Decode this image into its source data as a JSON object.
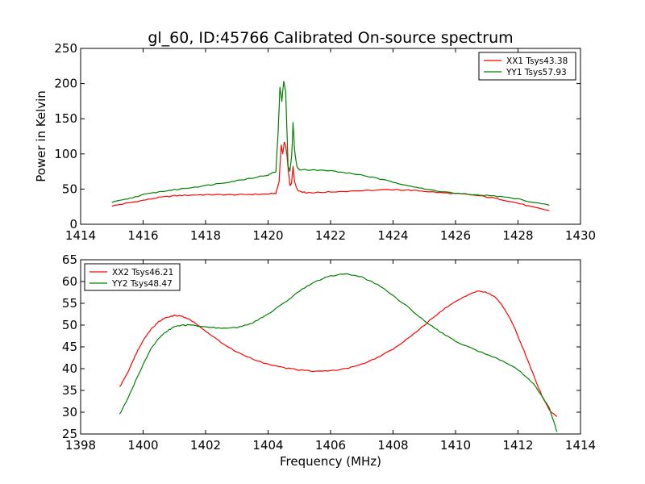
{
  "figure_title": "gl_60, ID:45766 Calibrated On-source spectrum",
  "chart_data": [
    {
      "type": "line",
      "xlim": [
        1414,
        1430
      ],
      "ylim": [
        0,
        250
      ],
      "xticks": [
        1414,
        1416,
        1418,
        1420,
        1422,
        1424,
        1426,
        1428,
        1430
      ],
      "yticks": [
        0,
        50,
        100,
        150,
        200,
        250
      ],
      "xlabel": "",
      "ylabel": "Power in Kelvin",
      "legend_position": "top-right",
      "series": [
        {
          "name": "XX1 Tsys43.38",
          "color": "#ff0000",
          "points": [
            [
              1415.0,
              26
            ],
            [
              1415.5,
              30
            ],
            [
              1416.0,
              34
            ],
            [
              1416.5,
              38
            ],
            [
              1417.0,
              40.5
            ],
            [
              1417.5,
              41.5
            ],
            [
              1418.0,
              42
            ],
            [
              1418.5,
              42
            ],
            [
              1419.0,
              42
            ],
            [
              1419.5,
              42.5
            ],
            [
              1420.0,
              43
            ],
            [
              1420.25,
              44
            ],
            [
              1420.35,
              60
            ],
            [
              1420.42,
              112
            ],
            [
              1420.47,
              100
            ],
            [
              1420.52,
              117
            ],
            [
              1420.56,
              112
            ],
            [
              1420.6,
              100
            ],
            [
              1420.65,
              75
            ],
            [
              1420.7,
              55
            ],
            [
              1420.75,
              58
            ],
            [
              1420.8,
              82
            ],
            [
              1420.85,
              60
            ],
            [
              1420.95,
              48
            ],
            [
              1421.2,
              45
            ],
            [
              1421.5,
              45
            ],
            [
              1422.0,
              46
            ],
            [
              1423.0,
              48
            ],
            [
              1424.0,
              49
            ],
            [
              1424.5,
              48.5
            ],
            [
              1425.0,
              47
            ],
            [
              1425.5,
              45
            ],
            [
              1426.0,
              43.5
            ],
            [
              1426.5,
              42
            ],
            [
              1427.0,
              39
            ],
            [
              1427.5,
              35
            ],
            [
              1428.0,
              30
            ],
            [
              1428.5,
              24
            ],
            [
              1429.0,
              19.5
            ]
          ]
        },
        {
          "name": "YY1 Tsys57.93",
          "color": "#008000",
          "points": [
            [
              1415.0,
              31
            ],
            [
              1415.5,
              36
            ],
            [
              1416.0,
              42
            ],
            [
              1416.5,
              46
            ],
            [
              1417.0,
              49
            ],
            [
              1417.5,
              52
            ],
            [
              1418.0,
              55
            ],
            [
              1418.5,
              58.5
            ],
            [
              1419.0,
              62
            ],
            [
              1419.5,
              66
            ],
            [
              1420.0,
              70
            ],
            [
              1420.25,
              75
            ],
            [
              1420.32,
              130
            ],
            [
              1420.38,
              195
            ],
            [
              1420.44,
              175
            ],
            [
              1420.5,
              203
            ],
            [
              1420.56,
              190
            ],
            [
              1420.6,
              140
            ],
            [
              1420.64,
              82
            ],
            [
              1420.7,
              76
            ],
            [
              1420.76,
              100
            ],
            [
              1420.8,
              145
            ],
            [
              1420.85,
              105
            ],
            [
              1420.92,
              82
            ],
            [
              1421.0,
              78
            ],
            [
              1421.5,
              77
            ],
            [
              1422.0,
              76
            ],
            [
              1422.5,
              73
            ],
            [
              1423.0,
              70
            ],
            [
              1423.5,
              65
            ],
            [
              1424.0,
              60
            ],
            [
              1424.5,
              55
            ],
            [
              1425.0,
              50
            ],
            [
              1425.5,
              47
            ],
            [
              1426.0,
              44
            ],
            [
              1426.5,
              42
            ],
            [
              1427.0,
              41
            ],
            [
              1427.5,
              39
            ],
            [
              1428.0,
              36
            ],
            [
              1428.5,
              31
            ],
            [
              1429.0,
              27
            ]
          ]
        }
      ]
    },
    {
      "type": "line",
      "xlim": [
        1398,
        1414
      ],
      "ylim": [
        25,
        65
      ],
      "xticks": [
        1398,
        1400,
        1402,
        1404,
        1406,
        1408,
        1410,
        1412,
        1414
      ],
      "yticks": [
        25,
        30,
        35,
        40,
        45,
        50,
        55,
        60,
        65
      ],
      "xlabel": "Frequency (MHz)",
      "ylabel": "",
      "legend_position": "top-left",
      "series": [
        {
          "name": "XX2 Tsys46.21",
          "color": "#ff0000",
          "points": [
            [
              1399.25,
              35.8
            ],
            [
              1399.5,
              39
            ],
            [
              1399.75,
              43
            ],
            [
              1400.0,
              46.5
            ],
            [
              1400.25,
              49
            ],
            [
              1400.5,
              50.8
            ],
            [
              1400.75,
              51.8
            ],
            [
              1401.0,
              52.2
            ],
            [
              1401.25,
              52
            ],
            [
              1401.5,
              51.3
            ],
            [
              1401.75,
              50
            ],
            [
              1402.0,
              48.6
            ],
            [
              1402.5,
              46
            ],
            [
              1403.0,
              43.8
            ],
            [
              1403.5,
              42.2
            ],
            [
              1404.0,
              41
            ],
            [
              1404.5,
              40.2
            ],
            [
              1405.0,
              39.7
            ],
            [
              1405.5,
              39.4
            ],
            [
              1406.0,
              39.5
            ],
            [
              1406.5,
              40
            ],
            [
              1407.0,
              41
            ],
            [
              1407.5,
              42.5
            ],
            [
              1408.0,
              44.5
            ],
            [
              1408.5,
              47
            ],
            [
              1409.0,
              50
            ],
            [
              1409.5,
              53
            ],
            [
              1410.0,
              55.5
            ],
            [
              1410.5,
              57.3
            ],
            [
              1410.75,
              57.8
            ],
            [
              1411.0,
              57.5
            ],
            [
              1411.25,
              56.5
            ],
            [
              1411.5,
              54.5
            ],
            [
              1411.75,
              51.5
            ],
            [
              1412.0,
              47.5
            ],
            [
              1412.25,
              43
            ],
            [
              1412.5,
              38.5
            ],
            [
              1412.75,
              34
            ],
            [
              1413.0,
              30.5
            ],
            [
              1413.25,
              29
            ]
          ]
        },
        {
          "name": "YY2 Tsys48.47",
          "color": "#008000",
          "points": [
            [
              1399.25,
              29.5
            ],
            [
              1399.5,
              33
            ],
            [
              1399.75,
              37
            ],
            [
              1400.0,
              41
            ],
            [
              1400.25,
              44.5
            ],
            [
              1400.5,
              47
            ],
            [
              1400.75,
              48.6
            ],
            [
              1401.0,
              49.6
            ],
            [
              1401.25,
              50
            ],
            [
              1401.5,
              50
            ],
            [
              1402.0,
              49.5
            ],
            [
              1402.5,
              49.3
            ],
            [
              1403.0,
              49.4
            ],
            [
              1403.5,
              50.5
            ],
            [
              1404.0,
              52.5
            ],
            [
              1404.5,
              55
            ],
            [
              1405.0,
              57.8
            ],
            [
              1405.5,
              60
            ],
            [
              1406.0,
              61.3
            ],
            [
              1406.5,
              61.8
            ],
            [
              1407.0,
              61
            ],
            [
              1407.5,
              59.3
            ],
            [
              1408.0,
              56.8
            ],
            [
              1408.5,
              54
            ],
            [
              1409.0,
              51
            ],
            [
              1409.5,
              48.5
            ],
            [
              1410.0,
              46.3
            ],
            [
              1410.5,
              44.7
            ],
            [
              1411.0,
              43.3
            ],
            [
              1411.5,
              41.8
            ],
            [
              1412.0,
              39.8
            ],
            [
              1412.5,
              36.5
            ],
            [
              1413.0,
              31
            ],
            [
              1413.25,
              25.5
            ]
          ]
        }
      ]
    }
  ]
}
